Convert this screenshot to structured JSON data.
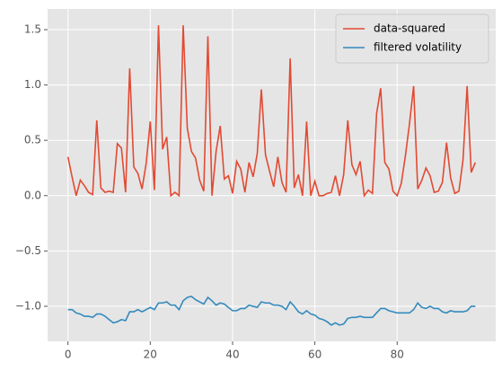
{
  "chart_data": {
    "type": "line",
    "x": [
      0,
      1,
      2,
      3,
      4,
      5,
      6,
      7,
      8,
      9,
      10,
      11,
      12,
      13,
      14,
      15,
      16,
      17,
      18,
      19,
      20,
      21,
      22,
      23,
      24,
      25,
      26,
      27,
      28,
      29,
      30,
      31,
      32,
      33,
      34,
      35,
      36,
      37,
      38,
      39,
      40,
      41,
      42,
      43,
      44,
      45,
      46,
      47,
      48,
      49,
      50,
      51,
      52,
      53,
      54,
      55,
      56,
      57,
      58,
      59,
      60,
      61,
      62,
      63,
      64,
      65,
      66,
      67,
      68,
      69,
      70,
      71,
      72,
      73,
      74,
      75,
      76,
      77,
      78,
      79,
      80,
      81,
      82,
      83,
      84,
      85,
      86,
      87,
      88,
      89,
      90,
      91,
      92,
      93,
      94,
      95,
      96,
      97,
      98,
      99
    ],
    "series": [
      {
        "name": "data-squared",
        "color": "#E24A33",
        "values": [
          0.35,
          0.17,
          0.0,
          0.14,
          0.09,
          0.03,
          0.01,
          0.68,
          0.07,
          0.03,
          0.04,
          0.03,
          0.47,
          0.43,
          0.03,
          1.15,
          0.26,
          0.2,
          0.06,
          0.29,
          0.67,
          0.05,
          1.54,
          0.42,
          0.53,
          0.0,
          0.03,
          0.0,
          1.54,
          0.61,
          0.4,
          0.34,
          0.14,
          0.04,
          1.44,
          0.0,
          0.4,
          0.63,
          0.15,
          0.18,
          0.02,
          0.31,
          0.24,
          0.03,
          0.3,
          0.17,
          0.38,
          0.96,
          0.37,
          0.22,
          0.08,
          0.35,
          0.12,
          0.03,
          1.24,
          0.07,
          0.19,
          0.0,
          0.67,
          0.0,
          0.13,
          0.0,
          0.0,
          0.02,
          0.03,
          0.18,
          0.0,
          0.19,
          0.68,
          0.28,
          0.19,
          0.31,
          0.0,
          0.05,
          0.02,
          0.74,
          0.97,
          0.3,
          0.24,
          0.04,
          0.0,
          0.11,
          0.36,
          0.65,
          0.99,
          0.06,
          0.14,
          0.25,
          0.18,
          0.03,
          0.04,
          0.12,
          0.48,
          0.16,
          0.02,
          0.04,
          0.32,
          0.99,
          0.21,
          0.3
        ]
      },
      {
        "name": "filtered volatility",
        "color": "#348ABD",
        "values": [
          -1.03,
          -1.03,
          -1.06,
          -1.07,
          -1.09,
          -1.09,
          -1.1,
          -1.07,
          -1.07,
          -1.09,
          -1.12,
          -1.15,
          -1.14,
          -1.12,
          -1.13,
          -1.05,
          -1.05,
          -1.03,
          -1.05,
          -1.03,
          -1.01,
          -1.03,
          -0.97,
          -0.97,
          -0.96,
          -0.99,
          -0.99,
          -1.03,
          -0.95,
          -0.92,
          -0.91,
          -0.94,
          -0.96,
          -0.98,
          -0.92,
          -0.95,
          -0.99,
          -0.97,
          -0.98,
          -1.01,
          -1.04,
          -1.04,
          -1.02,
          -1.02,
          -0.99,
          -1.0,
          -1.01,
          -0.96,
          -0.97,
          -0.97,
          -0.99,
          -0.99,
          -1.0,
          -1.03,
          -0.96,
          -1.0,
          -1.05,
          -1.07,
          -1.04,
          -1.07,
          -1.08,
          -1.11,
          -1.12,
          -1.14,
          -1.17,
          -1.15,
          -1.17,
          -1.16,
          -1.11,
          -1.1,
          -1.1,
          -1.09,
          -1.1,
          -1.1,
          -1.1,
          -1.06,
          -1.02,
          -1.02,
          -1.04,
          -1.05,
          -1.06,
          -1.06,
          -1.06,
          -1.06,
          -1.03,
          -0.97,
          -1.01,
          -1.02,
          -1.0,
          -1.02,
          -1.02,
          -1.05,
          -1.06,
          -1.04,
          -1.05,
          -1.05,
          -1.05,
          -1.04,
          -1.0,
          -1.0
        ]
      }
    ],
    "xlim": [
      -4.95,
      103.95
    ],
    "xticks": [
      0,
      20,
      40,
      60,
      80
    ],
    "ylim": [
      -1.317,
      1.687
    ],
    "yticks": [
      {
        "value": -1.0,
        "label": "−1.0"
      },
      {
        "value": -0.5,
        "label": "−0.5"
      },
      {
        "value": 0.0,
        "label": "0.0"
      },
      0.5,
      {
        "value": 1.0,
        "label": "1.0"
      },
      1.5
    ],
    "grid": true,
    "legend": "upper right"
  }
}
